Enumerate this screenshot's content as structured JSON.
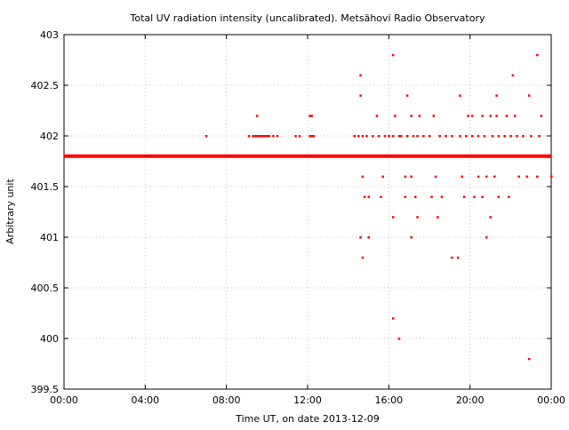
{
  "chart_data": {
    "type": "scatter",
    "title": "Total UV radiation intensity (uncalibrated). Metsähovi Radio Observatory",
    "xlabel": "Time UT, on date 2013-12-09",
    "ylabel": "Arbitrary unit",
    "x_unit": "hours UT",
    "xlim": [
      0,
      24
    ],
    "ylim": [
      399.5,
      403
    ],
    "x_ticks": [
      0,
      4,
      8,
      12,
      16,
      20,
      24
    ],
    "x_tick_labels": [
      "00:00",
      "04:00",
      "08:00",
      "12:00",
      "16:00",
      "20:00",
      "00:00"
    ],
    "y_ticks": [
      399.5,
      400,
      400.5,
      401,
      401.5,
      402,
      402.5,
      403
    ],
    "y_tick_labels": [
      "399.5",
      "400",
      "400.5",
      "401",
      "401.5",
      "402",
      "402.5",
      "403"
    ],
    "grid": true,
    "marker_color": "#ff0000",
    "baseline": {
      "value": 401.8,
      "from_x": 0,
      "to_x": 24
    },
    "series": [
      {
        "points": [
          [
            7.0,
            402.0
          ],
          [
            9.1,
            402.0
          ],
          [
            9.3,
            402.0
          ],
          [
            9.4,
            402.0
          ],
          [
            9.5,
            402.0
          ],
          [
            9.6,
            402.0
          ],
          [
            9.7,
            402.0
          ],
          [
            9.8,
            402.0
          ],
          [
            9.9,
            402.0
          ],
          [
            10.0,
            402.0
          ],
          [
            10.1,
            402.0
          ],
          [
            10.3,
            402.0
          ],
          [
            10.5,
            402.0
          ],
          [
            9.5,
            402.2
          ],
          [
            11.4,
            402.0
          ],
          [
            11.6,
            402.0
          ],
          [
            12.1,
            402.0
          ],
          [
            12.2,
            402.0
          ],
          [
            12.3,
            402.0
          ],
          [
            12.1,
            402.2
          ],
          [
            12.2,
            402.2
          ],
          [
            14.3,
            402.0
          ],
          [
            14.5,
            402.0
          ],
          [
            14.7,
            402.0
          ],
          [
            14.9,
            402.0
          ],
          [
            15.2,
            402.0
          ],
          [
            15.5,
            402.0
          ],
          [
            15.8,
            402.0
          ],
          [
            16.0,
            402.0
          ],
          [
            16.2,
            402.0
          ],
          [
            16.5,
            402.0
          ],
          [
            16.6,
            402.0
          ],
          [
            16.9,
            402.0
          ],
          [
            17.2,
            402.0
          ],
          [
            17.4,
            402.0
          ],
          [
            17.7,
            402.0
          ],
          [
            18.0,
            402.0
          ],
          [
            18.5,
            402.0
          ],
          [
            18.8,
            402.0
          ],
          [
            19.1,
            402.0
          ],
          [
            19.5,
            402.0
          ],
          [
            19.8,
            402.0
          ],
          [
            20.1,
            402.0
          ],
          [
            20.4,
            402.0
          ],
          [
            20.7,
            402.0
          ],
          [
            21.1,
            402.0
          ],
          [
            21.4,
            402.0
          ],
          [
            21.7,
            402.0
          ],
          [
            22.0,
            402.0
          ],
          [
            22.3,
            402.0
          ],
          [
            22.6,
            402.0
          ],
          [
            23.0,
            402.0
          ],
          [
            23.4,
            402.0
          ],
          [
            14.6,
            402.6
          ],
          [
            14.6,
            402.4
          ],
          [
            16.2,
            402.8
          ],
          [
            23.3,
            402.8
          ],
          [
            16.9,
            402.4
          ],
          [
            19.5,
            402.4
          ],
          [
            21.3,
            402.4
          ],
          [
            22.1,
            402.6
          ],
          [
            22.9,
            402.4
          ],
          [
            15.4,
            402.2
          ],
          [
            16.3,
            402.2
          ],
          [
            17.1,
            402.2
          ],
          [
            17.5,
            402.2
          ],
          [
            18.2,
            402.2
          ],
          [
            19.9,
            402.2
          ],
          [
            20.1,
            402.2
          ],
          [
            20.6,
            402.2
          ],
          [
            21.0,
            402.2
          ],
          [
            21.3,
            402.2
          ],
          [
            21.8,
            402.2
          ],
          [
            22.2,
            402.2
          ],
          [
            23.5,
            402.2
          ],
          [
            14.7,
            401.6
          ],
          [
            15.7,
            401.6
          ],
          [
            16.8,
            401.6
          ],
          [
            17.1,
            401.6
          ],
          [
            18.3,
            401.6
          ],
          [
            19.6,
            401.6
          ],
          [
            20.4,
            401.6
          ],
          [
            20.8,
            401.6
          ],
          [
            21.2,
            401.6
          ],
          [
            22.4,
            401.6
          ],
          [
            22.8,
            401.6
          ],
          [
            23.3,
            401.6
          ],
          [
            24.0,
            401.6
          ],
          [
            14.8,
            401.4
          ],
          [
            15.0,
            401.4
          ],
          [
            15.6,
            401.4
          ],
          [
            16.8,
            401.4
          ],
          [
            17.3,
            401.4
          ],
          [
            18.1,
            401.4
          ],
          [
            18.6,
            401.4
          ],
          [
            19.7,
            401.4
          ],
          [
            20.2,
            401.4
          ],
          [
            20.6,
            401.4
          ],
          [
            21.4,
            401.4
          ],
          [
            21.9,
            401.4
          ],
          [
            16.2,
            401.2
          ],
          [
            17.4,
            401.2
          ],
          [
            18.4,
            401.2
          ],
          [
            21.0,
            401.2
          ],
          [
            14.6,
            401.0
          ],
          [
            15.0,
            401.0
          ],
          [
            17.1,
            401.0
          ],
          [
            20.8,
            401.0
          ],
          [
            14.7,
            400.8
          ],
          [
            19.1,
            400.8
          ],
          [
            19.4,
            400.8
          ],
          [
            16.2,
            400.2
          ],
          [
            16.5,
            400.0
          ],
          [
            22.9,
            399.8
          ]
        ]
      }
    ]
  }
}
